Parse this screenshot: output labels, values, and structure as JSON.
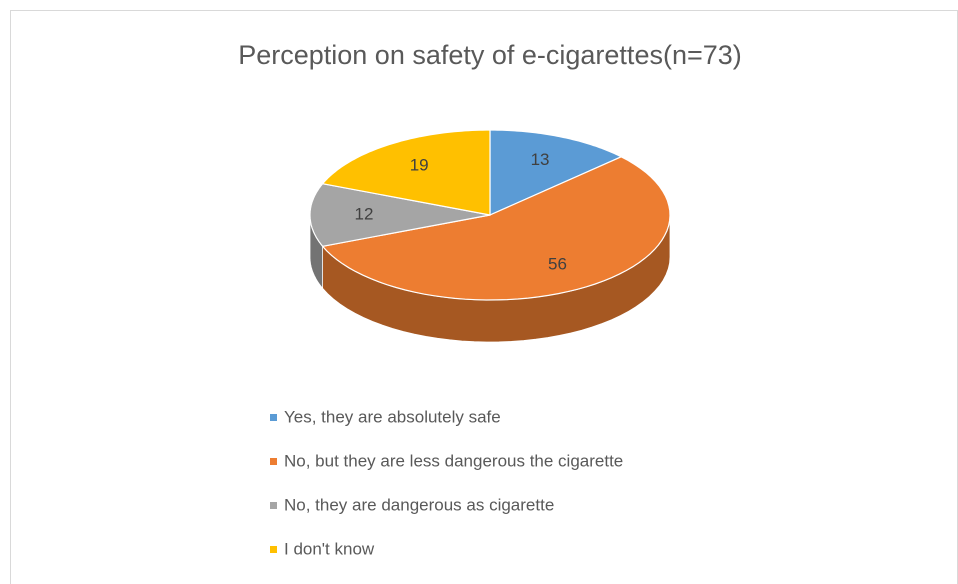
{
  "chart_data": {
    "type": "pie",
    "title": "Perception on safety of e-cigarettes(n=73)",
    "categories": [
      "Yes, they are absolutely safe",
      "No, but they are less dangerous the cigarette",
      "No, they are dangerous as cigarette",
      "I don't know"
    ],
    "values": [
      13,
      56,
      12,
      19
    ],
    "colors": [
      "#5b9bd5",
      "#ed7d31",
      "#a5a5a5",
      "#ffc000"
    ],
    "legend": "bottom"
  }
}
